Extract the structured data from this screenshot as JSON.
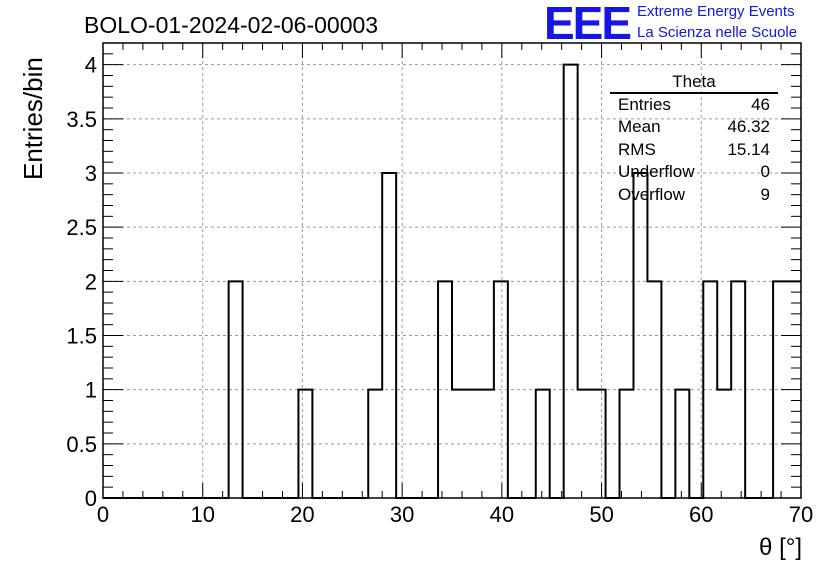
{
  "title": "BOLO-01-2024-02-06-00003",
  "logo": {
    "mark": "EEE",
    "line1": "Extreme Energy Events",
    "line2": "La Scienza nelle Scuole",
    "color": "#1515e6"
  },
  "stats": {
    "name": "Theta",
    "rows": [
      {
        "label": "Entries",
        "value": "46"
      },
      {
        "label": "Mean",
        "value": "46.32"
      },
      {
        "label": "RMS",
        "value": "15.14"
      },
      {
        "label": "Underflow",
        "value": "0"
      },
      {
        "label": "Overflow",
        "value": "9"
      }
    ]
  },
  "chart_data": {
    "type": "bar",
    "style": "step-histogram",
    "xlabel": "θ [°]",
    "ylabel": "Entries/bin",
    "xlim": [
      0,
      70
    ],
    "ylim": [
      0,
      4.2
    ],
    "grid": true,
    "x_ticks": [
      "0",
      "10",
      "20",
      "30",
      "40",
      "50",
      "60",
      "70"
    ],
    "y_ticks": [
      "0",
      "0.5",
      "1",
      "1.5",
      "2",
      "2.5",
      "3",
      "3.5",
      "4"
    ],
    "bin_width": 1.4,
    "bins": [
      {
        "x0": 12.6,
        "value": 2
      },
      {
        "x0": 19.6,
        "value": 1
      },
      {
        "x0": 26.6,
        "value": 1
      },
      {
        "x0": 28.0,
        "value": 3
      },
      {
        "x0": 33.6,
        "value": 2
      },
      {
        "x0": 35.0,
        "value": 1
      },
      {
        "x0": 36.4,
        "value": 1
      },
      {
        "x0": 37.8,
        "value": 1
      },
      {
        "x0": 39.2,
        "value": 2
      },
      {
        "x0": 43.4,
        "value": 1
      },
      {
        "x0": 46.2,
        "value": 4
      },
      {
        "x0": 47.6,
        "value": 1
      },
      {
        "x0": 49.0,
        "value": 1
      },
      {
        "x0": 51.8,
        "value": 1
      },
      {
        "x0": 53.2,
        "value": 3
      },
      {
        "x0": 54.6,
        "value": 2
      },
      {
        "x0": 57.4,
        "value": 1
      },
      {
        "x0": 60.2,
        "value": 2
      },
      {
        "x0": 61.6,
        "value": 1
      },
      {
        "x0": 63.0,
        "value": 2
      },
      {
        "x0": 67.2,
        "value": 2
      },
      {
        "x0": 68.6,
        "value": 2
      }
    ]
  }
}
